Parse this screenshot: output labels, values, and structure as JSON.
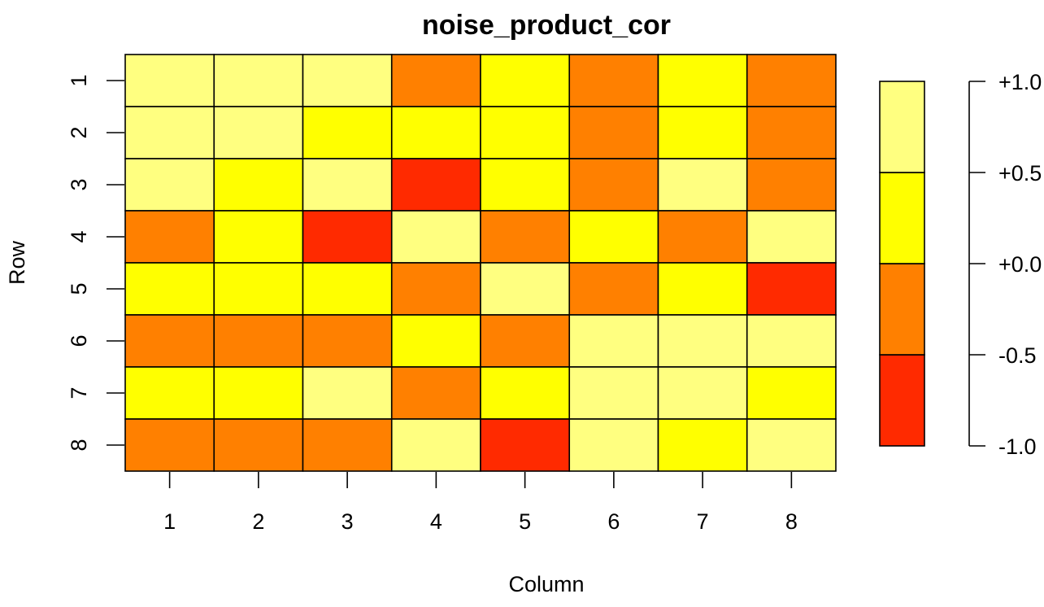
{
  "chart_data": {
    "type": "heatmap",
    "title": "noise_product_cor",
    "xlabel": "Column",
    "ylabel": "Row",
    "columns": [
      "1",
      "2",
      "3",
      "4",
      "5",
      "6",
      "7",
      "8"
    ],
    "rows": [
      "1",
      "2",
      "3",
      "4",
      "5",
      "6",
      "7",
      "8"
    ],
    "values": [
      [
        4,
        4,
        4,
        2,
        3,
        2,
        3,
        2
      ],
      [
        4,
        4,
        3,
        3,
        3,
        2,
        3,
        2
      ],
      [
        4,
        3,
        4,
        1,
        3,
        2,
        4,
        2
      ],
      [
        2,
        3,
        1,
        4,
        2,
        3,
        2,
        4
      ],
      [
        3,
        3,
        3,
        2,
        4,
        2,
        3,
        1
      ],
      [
        2,
        2,
        2,
        3,
        2,
        4,
        4,
        4
      ],
      [
        3,
        3,
        4,
        2,
        3,
        4,
        4,
        3
      ],
      [
        2,
        2,
        2,
        4,
        1,
        4,
        3,
        4
      ]
    ],
    "value_legend": "values are color-bin indices 1–4 (1 = lowest bin, red; 4 = highest bin, light yellow)",
    "colorbar": {
      "bins": [
        {
          "color": "#FF2A00"
        },
        {
          "color": "#FF8000"
        },
        {
          "color": "#FFFF00"
        },
        {
          "color": "#FFFF80"
        }
      ],
      "tick_labels": [
        "-1.0",
        "-0.5",
        "+0.0",
        "+0.5",
        "+1.0"
      ]
    }
  }
}
